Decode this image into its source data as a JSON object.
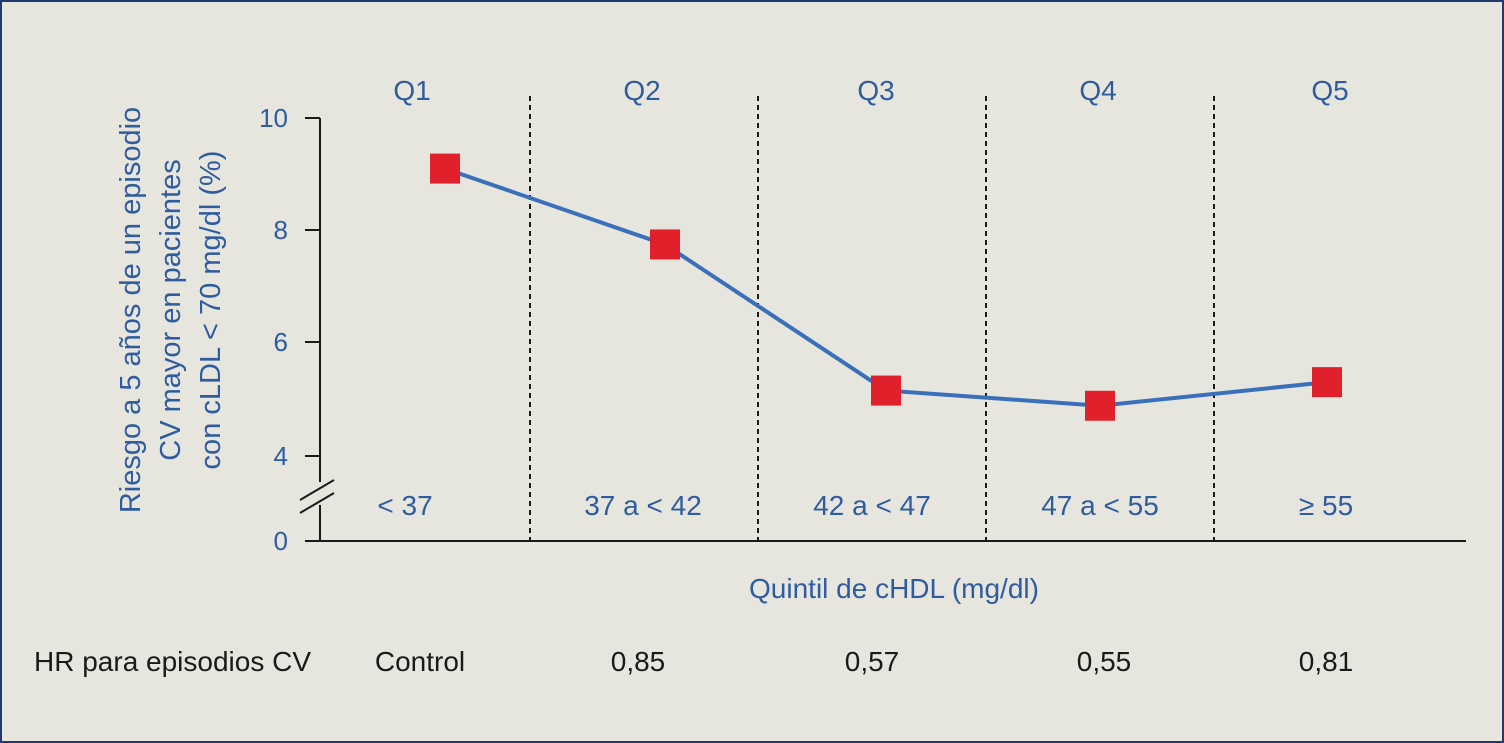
{
  "chart_data": {
    "type": "line",
    "ylabel_lines": [
      "Riesgo a 5 años de un episodio",
      "CV mayor en pacientes",
      "con cLDL < 70 mg/dl (%)"
    ],
    "xlabel": "Quintil de cHDL (mg/dl)",
    "quintiles": [
      "Q1",
      "Q2",
      "Q3",
      "Q4",
      "Q5"
    ],
    "ranges": [
      "< 37",
      "37 a < 42",
      "42 a < 47",
      "47 a < 55",
      "≥ 55"
    ],
    "values": [
      9.1,
      7.75,
      5.15,
      4.88,
      5.3
    ],
    "y_ticks": [
      "0",
      "4",
      "6",
      "8",
      "10"
    ],
    "y_axis_break": true,
    "hr_label": "HR para episodios CV",
    "hr_values": [
      "Control",
      "0,85",
      "0,57",
      "0,55",
      "0,81"
    ],
    "line_color": "#3a6fba",
    "marker_color": "#e0202a",
    "text_color": "#2f5c9e",
    "background": "#e6e6df",
    "grid": false,
    "legend": "none"
  }
}
